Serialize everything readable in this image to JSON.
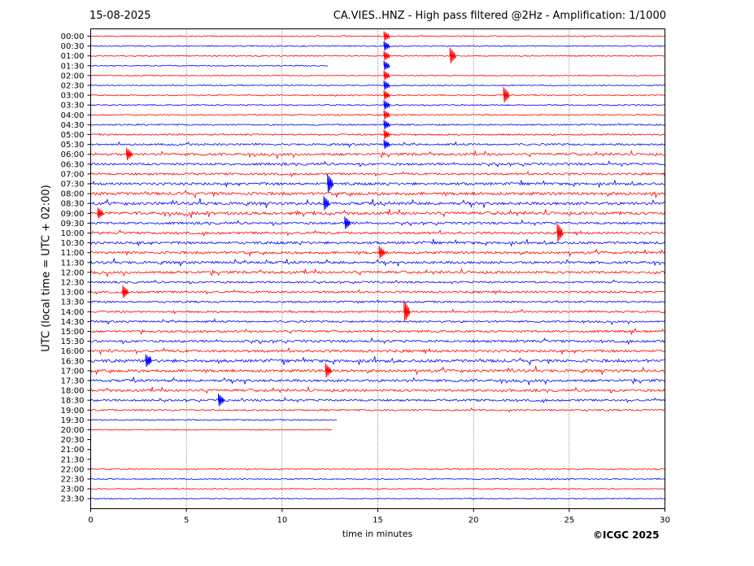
{
  "header": {
    "date": "15-08-2025",
    "title": "CA.VIES..HNZ - High pass filtered @2Hz - Amplification: 1/1000"
  },
  "footer": {
    "credit": "©ICGC 2025"
  },
  "chart_data": {
    "type": "line",
    "xlabel": "time in minutes",
    "ylabel": "UTC (local time = UTC + 02:00)",
    "xlim": [
      0,
      30
    ],
    "xticks": [
      0,
      5,
      10,
      15,
      20,
      25,
      30
    ],
    "grid": "vertical dotted lines at x ticks",
    "colors": {
      "even_rows": "#ff0000",
      "odd_rows": "#0000ff"
    },
    "rows": [
      {
        "label": "00:00",
        "end": 30,
        "activity": 0.15
      },
      {
        "label": "00:30",
        "end": 30,
        "activity": 0.15
      },
      {
        "label": "01:00",
        "end": 30,
        "activity": 0.15
      },
      {
        "label": "01:30",
        "end": 12.4,
        "activity": 0.1
      },
      {
        "label": "02:00",
        "end": 30,
        "activity": 0.1
      },
      {
        "label": "02:30",
        "end": 30,
        "activity": 0.15
      },
      {
        "label": "03:00",
        "end": 30,
        "activity": 0.15
      },
      {
        "label": "03:30",
        "end": 30,
        "activity": 0.2
      },
      {
        "label": "04:00",
        "end": 30,
        "activity": 0.2
      },
      {
        "label": "04:30",
        "end": 30,
        "activity": 0.3
      },
      {
        "label": "05:00",
        "end": 30,
        "activity": 0.35
      },
      {
        "label": "05:30",
        "end": 30,
        "activity": 0.5
      },
      {
        "label": "06:00",
        "end": 30,
        "activity": 0.8
      },
      {
        "label": "06:30",
        "end": 30,
        "activity": 0.7
      },
      {
        "label": "07:00",
        "end": 30,
        "activity": 0.6
      },
      {
        "label": "07:30",
        "end": 30,
        "activity": 0.8
      },
      {
        "label": "08:00",
        "end": 30,
        "activity": 1.0
      },
      {
        "label": "08:30",
        "end": 30,
        "activity": 1.0
      },
      {
        "label": "09:00",
        "end": 30,
        "activity": 1.0
      },
      {
        "label": "09:30",
        "end": 30,
        "activity": 0.7
      },
      {
        "label": "10:00",
        "end": 30,
        "activity": 0.7
      },
      {
        "label": "10:30",
        "end": 30,
        "activity": 0.8
      },
      {
        "label": "11:00",
        "end": 30,
        "activity": 0.8
      },
      {
        "label": "11:30",
        "end": 30,
        "activity": 0.8
      },
      {
        "label": "12:00",
        "end": 30,
        "activity": 0.8
      },
      {
        "label": "12:30",
        "end": 30,
        "activity": 0.5
      },
      {
        "label": "13:00",
        "end": 30,
        "activity": 0.6
      },
      {
        "label": "13:30",
        "end": 30,
        "activity": 0.5
      },
      {
        "label": "14:00",
        "end": 30,
        "activity": 0.5
      },
      {
        "label": "14:30",
        "end": 30,
        "activity": 0.5
      },
      {
        "label": "15:00",
        "end": 30,
        "activity": 0.6
      },
      {
        "label": "15:30",
        "end": 30,
        "activity": 0.7
      },
      {
        "label": "16:00",
        "end": 30,
        "activity": 0.8
      },
      {
        "label": "16:30",
        "end": 30,
        "activity": 1.0
      },
      {
        "label": "17:00",
        "end": 30,
        "activity": 0.9
      },
      {
        "label": "17:30",
        "end": 30,
        "activity": 0.8
      },
      {
        "label": "18:00",
        "end": 30,
        "activity": 0.8
      },
      {
        "label": "18:30",
        "end": 30,
        "activity": 0.6
      },
      {
        "label": "19:00",
        "end": 30,
        "activity": 0.4
      },
      {
        "label": "19:30",
        "end": 12.9,
        "activity": 0.2
      },
      {
        "label": "20:00",
        "end": 12.6,
        "activity": 0.05
      },
      {
        "label": "20:30",
        "end": 0,
        "activity": 0
      },
      {
        "label": "21:00",
        "end": 0,
        "activity": 0
      },
      {
        "label": "21:30",
        "end": 0,
        "activity": 0
      },
      {
        "label": "22:00",
        "end": 30,
        "activity": 0.15
      },
      {
        "label": "22:30",
        "end": 30,
        "activity": 0.15
      },
      {
        "label": "23:00",
        "end": 30,
        "activity": 0.1
      },
      {
        "label": "23:30",
        "end": 30,
        "activity": 0.1
      }
    ],
    "events": [
      {
        "row": "00:00",
        "x": 15.45,
        "amp": 6
      },
      {
        "row": "00:30",
        "x": 15.45,
        "amp": 6
      },
      {
        "row": "01:00",
        "x": 15.45,
        "amp": 6
      },
      {
        "row": "01:30",
        "x": 15.45,
        "amp": 6
      },
      {
        "row": "02:00",
        "x": 15.45,
        "amp": 6
      },
      {
        "row": "02:30",
        "x": 15.45,
        "amp": 6
      },
      {
        "row": "03:00",
        "x": 15.45,
        "amp": 6
      },
      {
        "row": "03:30",
        "x": 15.45,
        "amp": 6
      },
      {
        "row": "04:00",
        "x": 15.45,
        "amp": 6
      },
      {
        "row": "04:30",
        "x": 15.45,
        "amp": 6
      },
      {
        "row": "05:00",
        "x": 15.45,
        "amp": 6
      },
      {
        "row": "05:30",
        "x": 15.45,
        "amp": 6
      },
      {
        "row": "03:00",
        "x": 21.7,
        "amp": 10
      },
      {
        "row": "01:00",
        "x": 18.9,
        "amp": 10
      },
      {
        "row": "07:30",
        "x": 12.5,
        "amp": 12
      },
      {
        "row": "08:30",
        "x": 12.3,
        "amp": 9
      },
      {
        "row": "09:30",
        "x": 13.4,
        "amp": 8
      },
      {
        "row": "10:00",
        "x": 24.5,
        "amp": 12
      },
      {
        "row": "11:00",
        "x": 15.2,
        "amp": 8
      },
      {
        "row": "13:00",
        "x": 1.8,
        "amp": 8
      },
      {
        "row": "14:00",
        "x": 16.5,
        "amp": 14
      },
      {
        "row": "16:30",
        "x": 3.0,
        "amp": 8
      },
      {
        "row": "17:00",
        "x": 12.4,
        "amp": 9
      },
      {
        "row": "18:30",
        "x": 6.8,
        "amp": 8
      },
      {
        "row": "06:00",
        "x": 2.0,
        "amp": 8
      },
      {
        "row": "09:00",
        "x": 0.5,
        "amp": 7
      }
    ]
  }
}
